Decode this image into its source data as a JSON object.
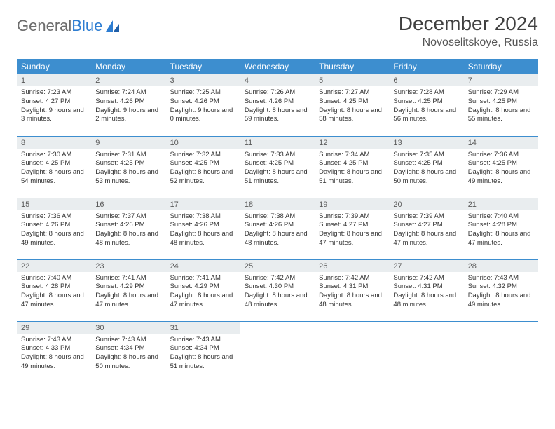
{
  "brand": {
    "part1": "General",
    "part2": "Blue"
  },
  "title": "December 2024",
  "location": "Novoselitskoye, Russia",
  "colors": {
    "header_bg": "#3d8ecf",
    "header_text": "#ffffff",
    "daynum_bg": "#e9edef",
    "border": "#3d8ecf",
    "brand_gray": "#6d6d6d",
    "brand_blue": "#2d7dd2"
  },
  "weekdays": [
    "Sunday",
    "Monday",
    "Tuesday",
    "Wednesday",
    "Thursday",
    "Friday",
    "Saturday"
  ],
  "days": [
    {
      "n": 1,
      "sr": "7:23 AM",
      "ss": "4:27 PM",
      "dl": "9 hours and 3 minutes."
    },
    {
      "n": 2,
      "sr": "7:24 AM",
      "ss": "4:26 PM",
      "dl": "9 hours and 2 minutes."
    },
    {
      "n": 3,
      "sr": "7:25 AM",
      "ss": "4:26 PM",
      "dl": "9 hours and 0 minutes."
    },
    {
      "n": 4,
      "sr": "7:26 AM",
      "ss": "4:26 PM",
      "dl": "8 hours and 59 minutes."
    },
    {
      "n": 5,
      "sr": "7:27 AM",
      "ss": "4:25 PM",
      "dl": "8 hours and 58 minutes."
    },
    {
      "n": 6,
      "sr": "7:28 AM",
      "ss": "4:25 PM",
      "dl": "8 hours and 56 minutes."
    },
    {
      "n": 7,
      "sr": "7:29 AM",
      "ss": "4:25 PM",
      "dl": "8 hours and 55 minutes."
    },
    {
      "n": 8,
      "sr": "7:30 AM",
      "ss": "4:25 PM",
      "dl": "8 hours and 54 minutes."
    },
    {
      "n": 9,
      "sr": "7:31 AM",
      "ss": "4:25 PM",
      "dl": "8 hours and 53 minutes."
    },
    {
      "n": 10,
      "sr": "7:32 AM",
      "ss": "4:25 PM",
      "dl": "8 hours and 52 minutes."
    },
    {
      "n": 11,
      "sr": "7:33 AM",
      "ss": "4:25 PM",
      "dl": "8 hours and 51 minutes."
    },
    {
      "n": 12,
      "sr": "7:34 AM",
      "ss": "4:25 PM",
      "dl": "8 hours and 51 minutes."
    },
    {
      "n": 13,
      "sr": "7:35 AM",
      "ss": "4:25 PM",
      "dl": "8 hours and 50 minutes."
    },
    {
      "n": 14,
      "sr": "7:36 AM",
      "ss": "4:25 PM",
      "dl": "8 hours and 49 minutes."
    },
    {
      "n": 15,
      "sr": "7:36 AM",
      "ss": "4:26 PM",
      "dl": "8 hours and 49 minutes."
    },
    {
      "n": 16,
      "sr": "7:37 AM",
      "ss": "4:26 PM",
      "dl": "8 hours and 48 minutes."
    },
    {
      "n": 17,
      "sr": "7:38 AM",
      "ss": "4:26 PM",
      "dl": "8 hours and 48 minutes."
    },
    {
      "n": 18,
      "sr": "7:38 AM",
      "ss": "4:26 PM",
      "dl": "8 hours and 48 minutes."
    },
    {
      "n": 19,
      "sr": "7:39 AM",
      "ss": "4:27 PM",
      "dl": "8 hours and 47 minutes."
    },
    {
      "n": 20,
      "sr": "7:39 AM",
      "ss": "4:27 PM",
      "dl": "8 hours and 47 minutes."
    },
    {
      "n": 21,
      "sr": "7:40 AM",
      "ss": "4:28 PM",
      "dl": "8 hours and 47 minutes."
    },
    {
      "n": 22,
      "sr": "7:40 AM",
      "ss": "4:28 PM",
      "dl": "8 hours and 47 minutes."
    },
    {
      "n": 23,
      "sr": "7:41 AM",
      "ss": "4:29 PM",
      "dl": "8 hours and 47 minutes."
    },
    {
      "n": 24,
      "sr": "7:41 AM",
      "ss": "4:29 PM",
      "dl": "8 hours and 47 minutes."
    },
    {
      "n": 25,
      "sr": "7:42 AM",
      "ss": "4:30 PM",
      "dl": "8 hours and 48 minutes."
    },
    {
      "n": 26,
      "sr": "7:42 AM",
      "ss": "4:31 PM",
      "dl": "8 hours and 48 minutes."
    },
    {
      "n": 27,
      "sr": "7:42 AM",
      "ss": "4:31 PM",
      "dl": "8 hours and 48 minutes."
    },
    {
      "n": 28,
      "sr": "7:43 AM",
      "ss": "4:32 PM",
      "dl": "8 hours and 49 minutes."
    },
    {
      "n": 29,
      "sr": "7:43 AM",
      "ss": "4:33 PM",
      "dl": "8 hours and 49 minutes."
    },
    {
      "n": 30,
      "sr": "7:43 AM",
      "ss": "4:34 PM",
      "dl": "8 hours and 50 minutes."
    },
    {
      "n": 31,
      "sr": "7:43 AM",
      "ss": "4:34 PM",
      "dl": "8 hours and 51 minutes."
    }
  ],
  "labels": {
    "sunrise": "Sunrise:",
    "sunset": "Sunset:",
    "daylight": "Daylight:"
  }
}
